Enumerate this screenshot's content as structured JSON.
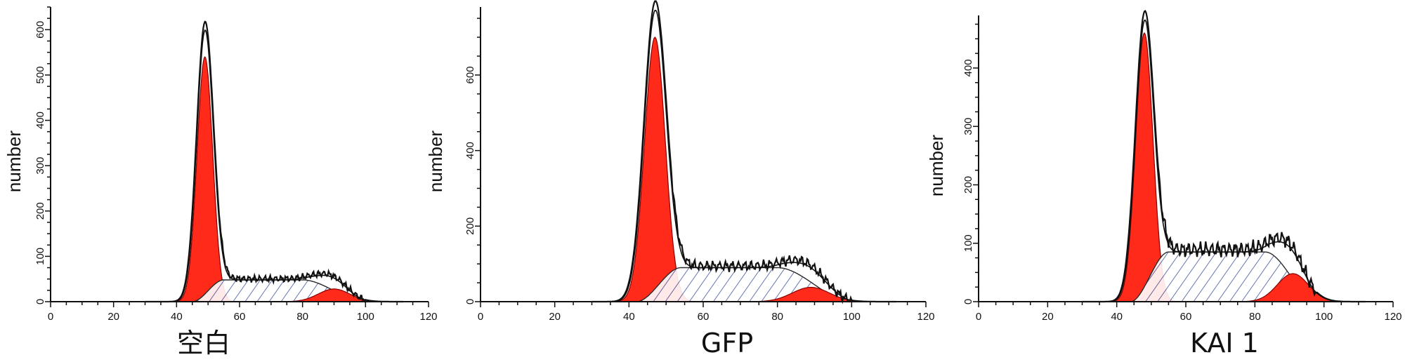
{
  "chart_data": [
    {
      "type": "area",
      "title": "空白",
      "ylabel": "number",
      "xlim": [
        0,
        120
      ],
      "ylim": [
        0,
        650
      ],
      "x_ticks": [
        0,
        20,
        40,
        60,
        80,
        100,
        120
      ],
      "y_ticks": [
        0,
        100,
        200,
        300,
        400,
        500,
        600
      ],
      "grid": false,
      "components": {
        "g1_peak": {
          "mean": 49,
          "sd": 2.5,
          "height": 540
        },
        "s_phase": {
          "from": 45,
          "to": 100,
          "plateau_start": 55,
          "plateau_end": 80,
          "height": 48
        },
        "g2_peak": {
          "mean": 90,
          "sd": 5,
          "height": 28
        }
      },
      "observed_peak": 600
    },
    {
      "type": "area",
      "title": "GFP",
      "ylabel": "number",
      "xlim": [
        0,
        120
      ],
      "ylim": [
        0,
        780
      ],
      "x_ticks": [
        0,
        20,
        40,
        60,
        80,
        100,
        120
      ],
      "y_ticks": [
        0,
        200,
        400,
        600
      ],
      "grid": false,
      "components": {
        "g1_peak": {
          "mean": 47,
          "sd": 2.8,
          "height": 700
        },
        "s_phase": {
          "from": 42,
          "to": 100,
          "plateau_start": 54,
          "plateau_end": 80,
          "height": 90
        },
        "g2_peak": {
          "mean": 89,
          "sd": 5,
          "height": 38
        }
      },
      "observed_peak": 760
    },
    {
      "type": "area",
      "title": "KAI 1",
      "ylabel": "number",
      "xlim": [
        0,
        120
      ],
      "ylim": [
        0,
        490
      ],
      "x_ticks": [
        0,
        20,
        40,
        60,
        80,
        100,
        120
      ],
      "y_ticks": [
        0,
        100,
        200,
        300,
        400
      ],
      "grid": false,
      "components": {
        "g1_peak": {
          "mean": 48,
          "sd": 2.5,
          "height": 460
        },
        "s_phase": {
          "from": 44,
          "to": 98,
          "plateau_start": 55,
          "plateau_end": 83,
          "height": 85
        },
        "g2_peak": {
          "mean": 91,
          "sd": 4.5,
          "height": 48
        }
      },
      "observed_peak": 470
    }
  ],
  "colors": {
    "g_peak_fill": "#ff2a1a",
    "g_peak_stroke": "#8a0000",
    "s_phase_hatch": "#2f3f8f",
    "s_phase_edge": "#2a2a2a",
    "axis": "#111111",
    "trace": "#111111"
  }
}
